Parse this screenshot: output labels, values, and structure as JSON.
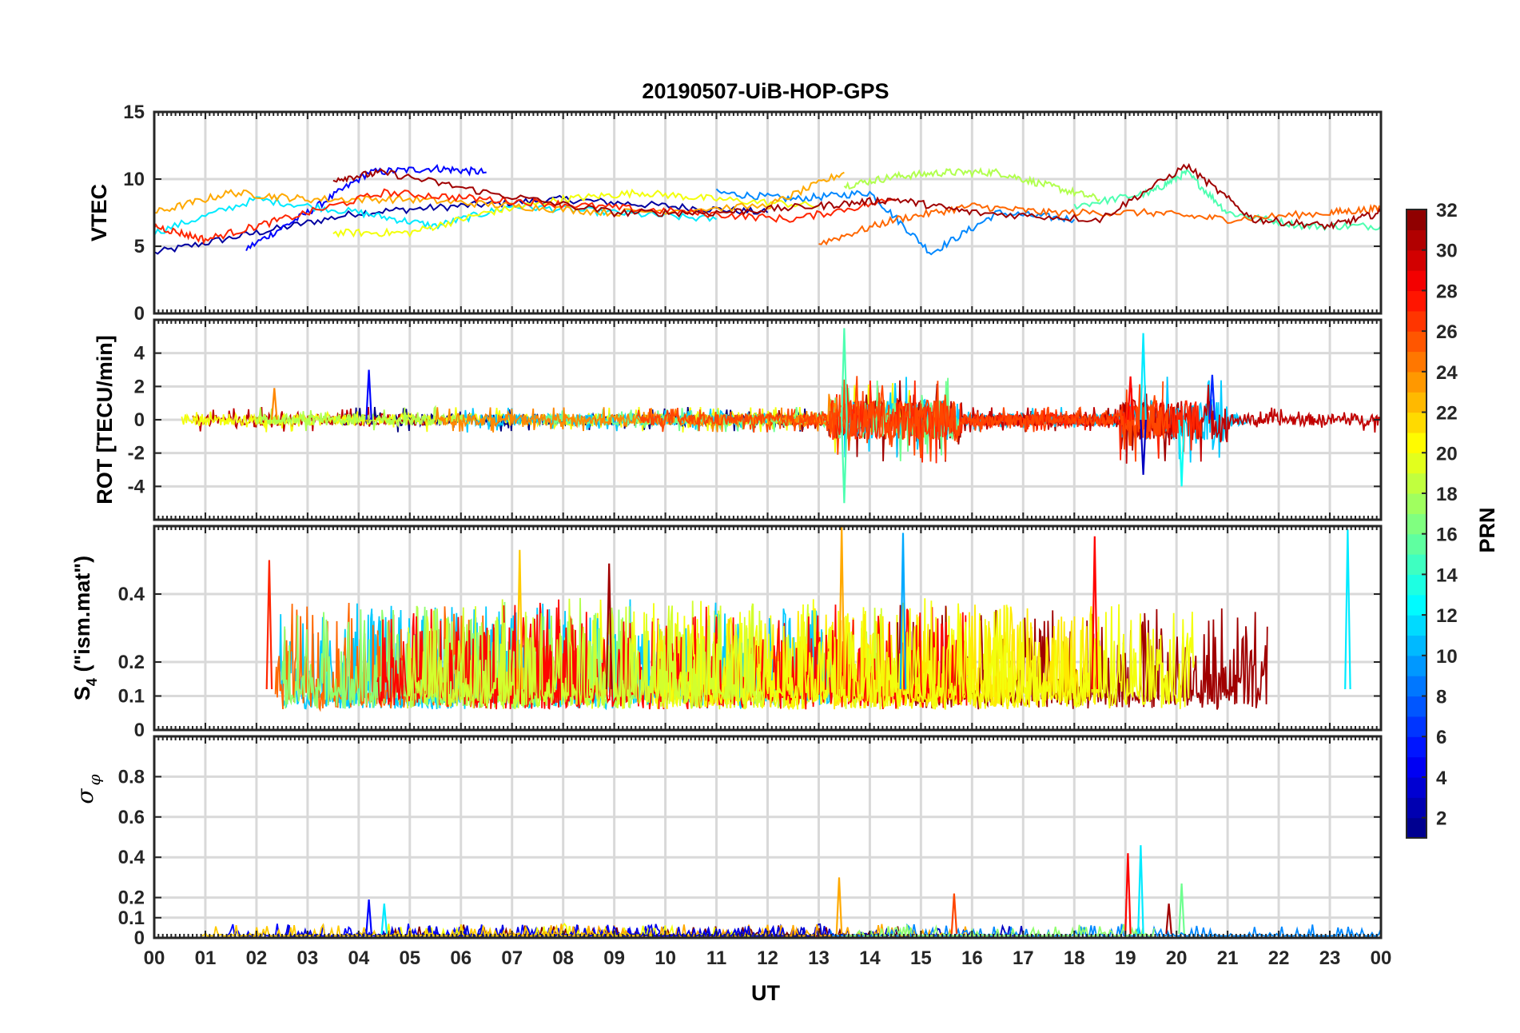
{
  "chart_data": {
    "type": "line",
    "title": "20190507-UiB-HOP-GPS",
    "xlabel": "UT",
    "x_tick_labels": [
      "00",
      "01",
      "02",
      "03",
      "04",
      "05",
      "06",
      "07",
      "08",
      "09",
      "10",
      "11",
      "12",
      "13",
      "14",
      "15",
      "16",
      "17",
      "18",
      "19",
      "20",
      "21",
      "22",
      "23",
      "00"
    ],
    "xlim": [
      0,
      24
    ],
    "colorbar": {
      "label": "PRN",
      "range": [
        1,
        32
      ],
      "tick_labels": [
        "2",
        "4",
        "6",
        "8",
        "10",
        "12",
        "14",
        "16",
        "18",
        "20",
        "22",
        "24",
        "26",
        "28",
        "30",
        "32"
      ],
      "colormap": "jet"
    },
    "panels": [
      {
        "id": "vtec",
        "ylabel": "VTEC",
        "ylim": [
          0,
          15
        ],
        "y_tick_labels": [
          "0",
          "5",
          "10",
          "15"
        ],
        "series": [
          {
            "prn": 2,
            "x": [
              0.0,
              2.0,
              4.0,
              6.0,
              8.0,
              10.0,
              12.0
            ],
            "y": [
              4.5,
              6.0,
              7.5,
              8.0,
              8.5,
              8.0,
              7.5
            ]
          },
          {
            "prn": 5,
            "x": [
              1.8,
              3.0,
              4.2,
              5.5,
              6.5
            ],
            "y": [
              4.8,
              7.5,
              10.5,
              10.8,
              10.5
            ]
          },
          {
            "prn": 9,
            "x": [
              11.0,
              12.5,
              14.0,
              15.2,
              16.5,
              18.0
            ],
            "y": [
              9.0,
              8.5,
              9.0,
              4.5,
              7.5,
              7.0
            ]
          },
          {
            "prn": 12,
            "x": [
              0.0,
              2.0,
              4.0,
              5.5,
              7.0,
              9.0,
              11.0
            ],
            "y": [
              6.0,
              8.5,
              7.5,
              6.5,
              8.0,
              7.5,
              7.0
            ]
          },
          {
            "prn": 15,
            "x": [
              18.0,
              19.5,
              20.2,
              21.0,
              22.5,
              24.0
            ],
            "y": [
              8.0,
              9.0,
              10.5,
              7.5,
              6.5,
              6.5
            ]
          },
          {
            "prn": 18,
            "x": [
              13.5,
              14.5,
              15.5,
              16.5,
              17.5,
              18.5
            ],
            "y": [
              9.5,
              10.2,
              10.5,
              10.5,
              9.5,
              8.5
            ]
          },
          {
            "prn": 20,
            "x": [
              3.5,
              5.0,
              6.5,
              8.0,
              9.5,
              11.0,
              13.0
            ],
            "y": [
              6.0,
              6.0,
              7.5,
              8.5,
              9.0,
              8.5,
              8.0
            ]
          },
          {
            "prn": 23,
            "x": [
              0.0,
              1.5,
              3.0,
              5.0,
              7.0,
              9.0,
              12.0,
              13.5
            ],
            "y": [
              7.5,
              9.0,
              8.5,
              8.5,
              8.0,
              7.5,
              8.0,
              10.5
            ]
          },
          {
            "prn": 25,
            "x": [
              13.0,
              14.5,
              16.0,
              17.5,
              19.5,
              21.0,
              23.0,
              24.0
            ],
            "y": [
              5.2,
              7.0,
              8.0,
              7.5,
              7.5,
              7.0,
              7.5,
              7.8
            ]
          },
          {
            "prn": 27,
            "x": [
              0.0,
              1.0,
              2.5,
              4.5,
              6.5,
              8.5,
              10.5,
              12.5,
              14.5
            ],
            "y": [
              6.5,
              5.5,
              7.0,
              9.0,
              8.5,
              8.0,
              7.5,
              7.0,
              8.5
            ]
          },
          {
            "prn": 31,
            "x": [
              3.5,
              4.5,
              6.5,
              9.0,
              11.0,
              13.0,
              14.5,
              16.0,
              18.5,
              20.2,
              21.5,
              23.0,
              24.0
            ],
            "y": [
              10.0,
              10.5,
              9.0,
              7.5,
              7.5,
              8.0,
              8.5,
              7.5,
              7.0,
              11.0,
              7.0,
              6.5,
              7.5
            ]
          }
        ]
      },
      {
        "id": "rot",
        "ylabel": "ROT [TECU/min]",
        "ylim": [
          -6,
          6
        ],
        "y_tick_labels": [
          "-4",
          "-2",
          "0",
          "2",
          "4"
        ],
        "peaks": [
          {
            "prn": 5,
            "x": 4.2,
            "y": 3.0
          },
          {
            "prn": 24,
            "x": 2.35,
            "y": 1.9
          },
          {
            "prn": 15,
            "x": 13.5,
            "y": 5.5
          },
          {
            "prn": 15,
            "x": 13.5,
            "y": -5.0
          },
          {
            "prn": 26,
            "x": 15.0,
            "y": -2.3
          },
          {
            "prn": 12,
            "x": 19.35,
            "y": 5.2
          },
          {
            "prn": 3,
            "x": 19.35,
            "y": -3.3
          },
          {
            "prn": 13,
            "x": 20.1,
            "y": -4.0
          },
          {
            "prn": 28,
            "x": 19.1,
            "y": 2.6
          },
          {
            "prn": 6,
            "x": 20.7,
            "y": 2.7
          }
        ]
      },
      {
        "id": "s4",
        "ylabel": "S4 (\"ism.mat\")",
        "ylabel_main": "S",
        "ylabel_sub": "4",
        "ylabel_rest": " (\"ism.mat\")",
        "ylim": [
          0,
          0.6
        ],
        "y_tick_labels": [
          "0",
          "0.1",
          "0.2",
          "0.4"
        ],
        "y_tick_values": [
          0,
          0.1,
          0.2,
          0.4
        ],
        "peaks": [
          {
            "prn": 22,
            "x": 7.15,
            "y": 0.53
          },
          {
            "prn": 23,
            "x": 13.45,
            "y": 0.6
          },
          {
            "prn": 10,
            "x": 14.65,
            "y": 0.58
          },
          {
            "prn": 28,
            "x": 18.4,
            "y": 0.57
          },
          {
            "prn": 12,
            "x": 23.35,
            "y": 0.59
          },
          {
            "prn": 31,
            "x": 8.9,
            "y": 0.49
          },
          {
            "prn": 27,
            "x": 2.25,
            "y": 0.5
          }
        ]
      },
      {
        "id": "sigma",
        "ylabel": "σφ",
        "ylabel_main": "σ",
        "ylabel_sub": "φ",
        "ylim": [
          0,
          1.0
        ],
        "y_tick_labels": [
          "0",
          "0.1",
          "0.2",
          "0.4",
          "0.6",
          "0.8"
        ],
        "y_tick_values": [
          0,
          0.1,
          0.2,
          0.4,
          0.6,
          0.8
        ],
        "peaks": [
          {
            "prn": 5,
            "x": 4.2,
            "y": 0.19
          },
          {
            "prn": 12,
            "x": 4.5,
            "y": 0.17
          },
          {
            "prn": 23,
            "x": 13.4,
            "y": 0.3
          },
          {
            "prn": 26,
            "x": 15.65,
            "y": 0.22
          },
          {
            "prn": 28,
            "x": 19.05,
            "y": 0.42
          },
          {
            "prn": 12,
            "x": 19.3,
            "y": 0.46
          },
          {
            "prn": 16,
            "x": 20.1,
            "y": 0.27
          },
          {
            "prn": 31,
            "x": 19.85,
            "y": 0.17
          }
        ]
      }
    ]
  }
}
